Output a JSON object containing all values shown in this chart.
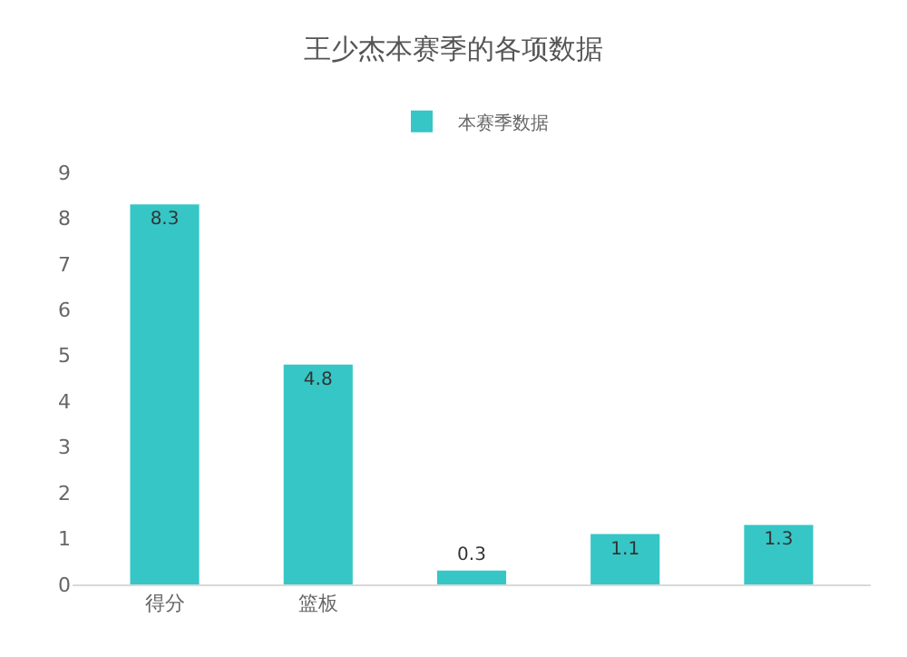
{
  "chart_data": {
    "type": "bar",
    "title": "王少杰本赛季的各项数据",
    "categories": [
      "得分",
      "篮板",
      null,
      null,
      null
    ],
    "series": [
      {
        "name": "本赛季数据",
        "color": "#36c6c6",
        "values": [
          8.3,
          4.8,
          0.3,
          1.1,
          1.3
        ]
      }
    ],
    "ylim": [
      0,
      9
    ],
    "yticks": [
      0,
      1,
      2,
      3,
      4,
      5,
      6,
      7,
      8,
      9
    ],
    "legend": "top",
    "data_labels": true
  }
}
